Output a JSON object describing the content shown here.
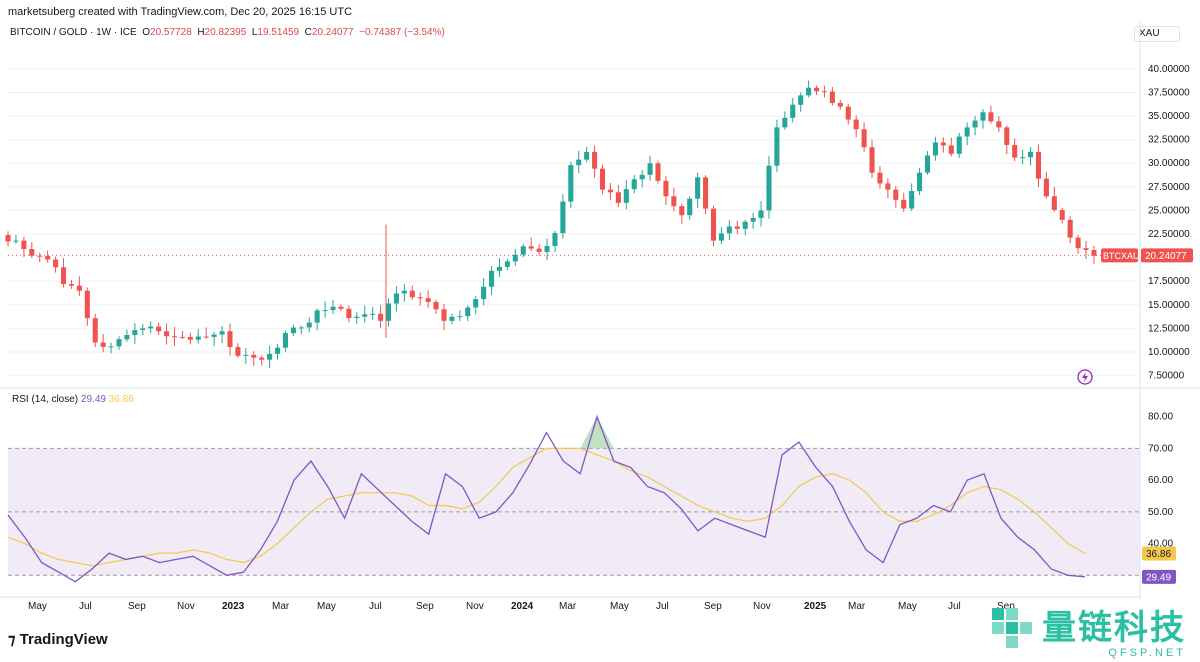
{
  "header": {
    "creator": "marketsuberg created with TradingView.com, Dec 20, 2025 16:15 UTC"
  },
  "symbol_legend": {
    "name": "BITCOIN / GOLD · 1W · ICE",
    "o_label": "O",
    "o_value": "20.57728",
    "h_label": "H",
    "h_value": "20.82395",
    "l_label": "L",
    "l_value": "19.51459",
    "c_label": "C",
    "c_value": "20.24077",
    "change": "−0.74387 (−3.54%)"
  },
  "currency": "XAU",
  "rsi_legend": {
    "label": "RSI (14, close)",
    "rsi": "29.49",
    "ma": "36.86"
  },
  "brand": "TradingView",
  "watermark": {
    "cn": "量链科技",
    "en": "QFSP.NET"
  },
  "colors": {
    "up": "#26a69a",
    "down": "#ef5350",
    "rsi": "#7e57c2",
    "rsi_ma": "#f2c94c",
    "band": "#ede7f6"
  },
  "chart_data": [
    {
      "type": "candlestick",
      "symbol_tag": "BTCXAU",
      "last_price": "20.24077",
      "y_ticks": [
        "40.00000",
        "37.50000",
        "35.00000",
        "32.50000",
        "30.00000",
        "27.50000",
        "25.00000",
        "22.50000",
        "17.50000",
        "15.00000",
        "12.50000",
        "10.00000",
        "7.50000"
      ],
      "ylim": [
        6.5,
        42
      ],
      "x_ticks": [
        "May",
        "Jul",
        "Sep",
        "Nov",
        "2023",
        "Mar",
        "May",
        "Jul",
        "Sep",
        "Nov",
        "2024",
        "Mar",
        "May",
        "Jul",
        "Sep",
        "Nov",
        "2025",
        "Mar",
        "May",
        "Jul",
        "Sep"
      ],
      "close_path": [
        21.8,
        20.2,
        19.8,
        17.2,
        16.5,
        11.0,
        10.6,
        11.8,
        12.5,
        12.2,
        11.6,
        11.3,
        11.6,
        12.2,
        9.6,
        9.4,
        9.8,
        12.0,
        12.6,
        14.4,
        14.8,
        13.6,
        14.0,
        13.3,
        16.2,
        15.8,
        15.3,
        13.3,
        13.8,
        15.6,
        18.6,
        19.6,
        21.2,
        20.6,
        22.6,
        29.8,
        31.2,
        27.2,
        25.8,
        28.3,
        30.0,
        26.5,
        24.5,
        28.5,
        21.8,
        23.3,
        23.8,
        25.0,
        33.8,
        36.2,
        38.0,
        37.6,
        36.0,
        33.6,
        29.0,
        27.2,
        25.2,
        29.0,
        32.2,
        31.0,
        33.8,
        35.4,
        33.8,
        30.6,
        31.2,
        26.5,
        24.0,
        21.0,
        20.2
      ]
    },
    {
      "type": "line",
      "name": "RSI (14, close)",
      "y_ticks": [
        "80.00",
        "70.00",
        "60.00",
        "50.00",
        "40.00"
      ],
      "ylim": [
        26,
        84
      ],
      "rsi_tags": [
        "36.86",
        "29.49"
      ],
      "rsi_path": [
        49,
        42,
        34,
        31,
        28,
        32,
        37,
        35,
        36,
        34,
        35,
        36,
        33,
        30,
        31,
        38,
        47,
        60,
        66,
        58,
        48,
        62,
        57,
        52,
        47,
        43,
        62,
        58,
        48,
        50,
        56,
        65,
        75,
        66,
        62,
        80,
        66,
        64,
        58,
        56,
        51,
        44,
        48,
        46,
        44,
        42,
        68,
        72,
        64,
        58,
        47,
        38,
        34,
        46,
        48,
        52,
        50,
        60,
        62,
        48,
        42,
        38,
        32,
        30,
        29.5
      ],
      "ma_path": [
        42,
        40,
        37,
        35,
        34,
        33,
        34,
        35,
        36,
        37,
        37,
        38,
        37,
        35,
        34,
        36,
        40,
        45,
        50,
        54,
        55,
        56,
        56,
        56,
        55,
        52,
        52,
        51,
        53,
        58,
        64,
        67,
        70,
        70,
        70,
        68,
        66,
        63,
        61,
        58,
        55,
        52,
        50,
        48,
        47,
        48,
        52,
        58,
        61,
        62,
        60,
        56,
        50,
        47,
        47,
        49,
        52,
        56,
        58,
        57,
        54,
        50,
        45,
        40,
        36.86
      ]
    }
  ]
}
